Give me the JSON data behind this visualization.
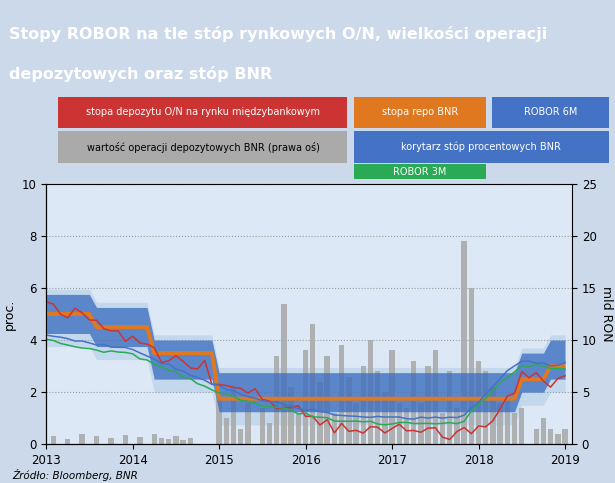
{
  "title_line1": "Stopy ROBOR na tle stóp rynkowych O/N, wielkości operacji",
  "title_line2": "depozytowych oraz stóp BNR",
  "title_bg": "#1e3464",
  "title_color": "white",
  "ylabel_left": "proc.",
  "ylabel_right": "mld RON",
  "source": "Źródło: Bloomberg, BNR",
  "ylim_left": [
    0,
    10
  ],
  "ylim_right": [
    0,
    25
  ],
  "plot_bg": "#dce8f5",
  "outer_bg": "#ccd9ea",
  "legend1_label": "stopa depozytu O/N na rynku międzybankowym",
  "legend1_color": "#cc3333",
  "legend2_label": "stopa repo BNR",
  "legend2_color": "#e07820",
  "legend3_label": "ROBOR 6M",
  "legend3_color": "#4472c4",
  "legend4_label": "wartość operacji depozytowych BNR (prawa oś)",
  "legend4_color": "#aaaaaa",
  "legend5_label": "korytarz stóp procentowych BNR",
  "legend5_color": "#4472c4",
  "legend6_label": "ROBOR 3M",
  "legend6_color": "#2aaa55",
  "on_color": "#cc3333",
  "repo_color": "#e07820",
  "robor6m_color": "#4472c4",
  "robor3m_color": "#2aaa55",
  "bar_color": "#aaaaaa",
  "corridor_color": "#4472c4"
}
